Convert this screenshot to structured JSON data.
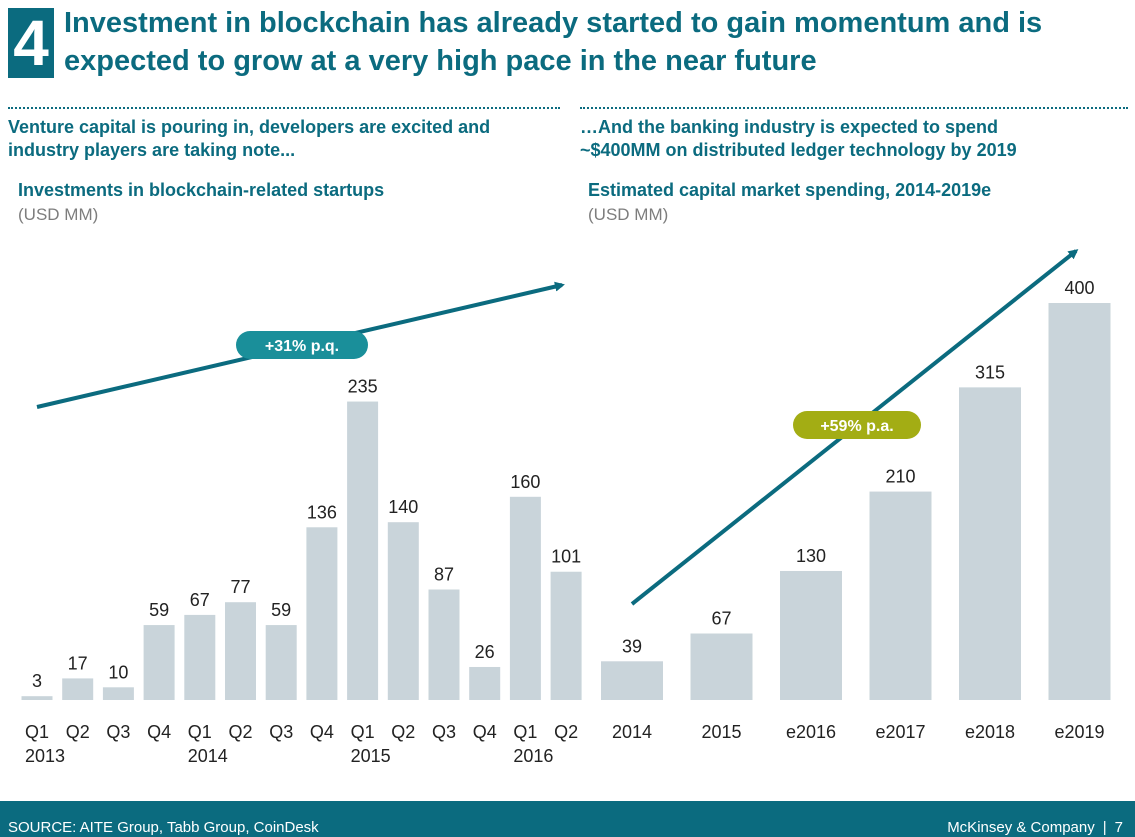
{
  "slide": {
    "number": "4",
    "title_line1": "Investment in blockchain has already started to gain momentum and is",
    "title_line2": "expected to grow at a very high pace in the near future"
  },
  "left_panel": {
    "subtitle_line1": "Venture capital is pouring in, developers are excited and",
    "subtitle_line2": "industry players are taking note...",
    "chart_title": "Investments in blockchain-related startups",
    "unit": "(USD MM)",
    "growth_label": "+31% p.q."
  },
  "right_panel": {
    "subtitle_line1": "…And the banking industry is expected to spend",
    "subtitle_line2": "~$400MM on distributed ledger technology by 2019",
    "chart_title": "Estimated capital market spending, 2014-2019e",
    "unit": "(USD MM)",
    "growth_label": "+59% p.a."
  },
  "colors": {
    "primary": "#0b6b7f",
    "bar": "#c9d4da",
    "badge_left": "#1a8f9a",
    "badge_right": "#a3ad14"
  },
  "chart_data": [
    {
      "type": "bar",
      "title": "Investments in blockchain-related startups",
      "ylabel": "(USD MM)",
      "categories": [
        "Q1 2013",
        "Q2",
        "Q3",
        "Q4",
        "Q1 2014",
        "Q2",
        "Q3",
        "Q4",
        "Q1 2015",
        "Q2",
        "Q3",
        "Q4",
        "Q1 2016",
        "Q2"
      ],
      "tick_labels": [
        [
          "Q1",
          "2013"
        ],
        [
          "Q2",
          ""
        ],
        [
          "Q3",
          ""
        ],
        [
          "Q4",
          ""
        ],
        [
          "Q1",
          "2014"
        ],
        [
          "Q2",
          ""
        ],
        [
          "Q3",
          ""
        ],
        [
          "Q4",
          ""
        ],
        [
          "Q1",
          "2015"
        ],
        [
          "Q2",
          ""
        ],
        [
          "Q3",
          ""
        ],
        [
          "Q4",
          ""
        ],
        [
          "Q1",
          "2016"
        ],
        [
          "Q2",
          ""
        ]
      ],
      "values": [
        3,
        17,
        10,
        59,
        67,
        77,
        59,
        136,
        235,
        140,
        87,
        26,
        160,
        101
      ],
      "ylim": [
        0,
        250
      ],
      "annotation": "+31% p.q."
    },
    {
      "type": "bar",
      "title": "Estimated capital market spending, 2014-2019e",
      "ylabel": "(USD MM)",
      "categories": [
        "2014",
        "2015",
        "e2016",
        "e2017",
        "e2018",
        "e2019"
      ],
      "values": [
        39,
        67,
        130,
        210,
        315,
        400
      ],
      "ylim": [
        0,
        400
      ],
      "annotation": "+59% p.a."
    }
  ],
  "footer": {
    "source": "SOURCE: AITE Group, Tabb Group, CoinDesk",
    "brand": "McKinsey & Company",
    "separator": "|",
    "page": "7"
  }
}
